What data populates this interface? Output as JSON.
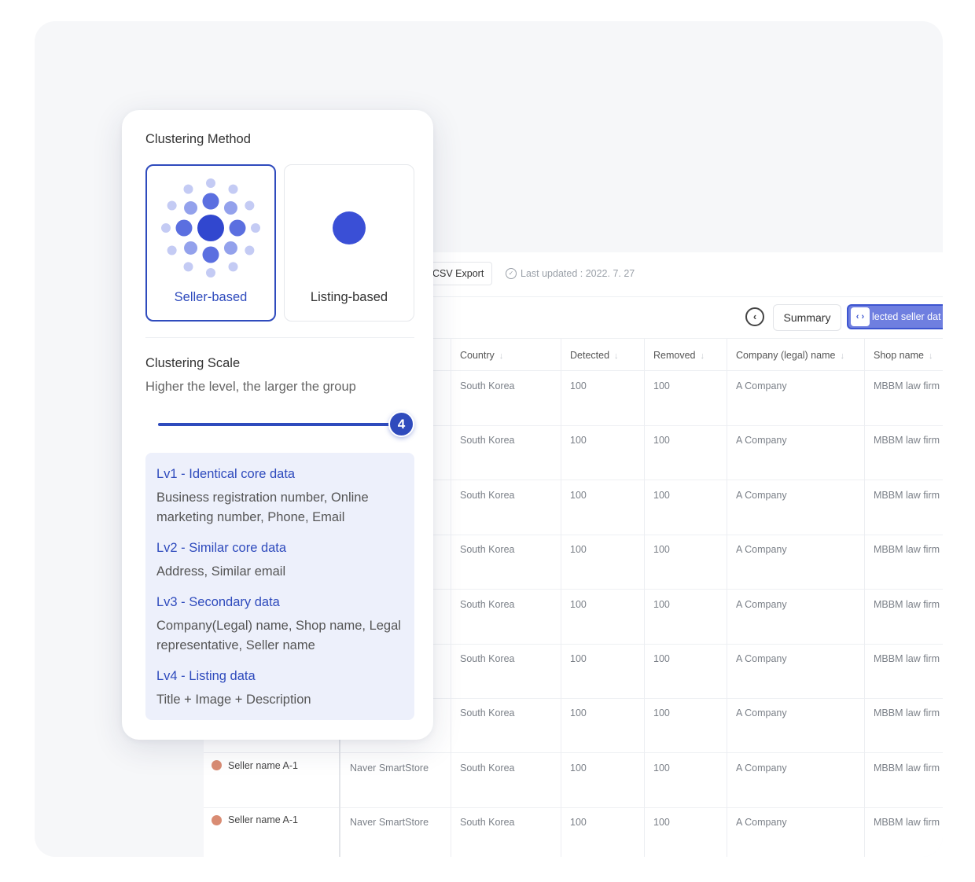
{
  "toolbar": {
    "csv_export": "CSV Export",
    "last_updated": "Last updated : 2022. 7. 27",
    "summary": "Summary",
    "selected_label": "lected seller dat"
  },
  "table": {
    "columns": [
      "Country",
      "Detected",
      "Removed",
      "Company (legal) name",
      "Shop name"
    ],
    "rows": [
      {
        "seller": "",
        "platform": "",
        "country": "South Korea",
        "detected": "100",
        "removed": "100",
        "company": "A Company",
        "shop": "MBBM law firm"
      },
      {
        "seller": "",
        "platform": "",
        "country": "South Korea",
        "detected": "100",
        "removed": "100",
        "company": "A Company",
        "shop": "MBBM law firm"
      },
      {
        "seller": "",
        "platform": "",
        "country": "South Korea",
        "detected": "100",
        "removed": "100",
        "company": "A Company",
        "shop": "MBBM law firm"
      },
      {
        "seller": "",
        "platform": "",
        "country": "South Korea",
        "detected": "100",
        "removed": "100",
        "company": "A Company",
        "shop": "MBBM law firm"
      },
      {
        "seller": "",
        "platform": "",
        "country": "South Korea",
        "detected": "100",
        "removed": "100",
        "company": "A Company",
        "shop": "MBBM law firm"
      },
      {
        "seller": "",
        "platform": "",
        "country": "South Korea",
        "detected": "100",
        "removed": "100",
        "company": "A Company",
        "shop": "MBBM law firm"
      },
      {
        "seller": "",
        "platform": "",
        "country": "South Korea",
        "detected": "100",
        "removed": "100",
        "company": "A Company",
        "shop": "MBBM law firm"
      },
      {
        "seller": "Seller name A-1",
        "platform": "Naver SmartStore",
        "country": "South Korea",
        "detected": "100",
        "removed": "100",
        "company": "A Company",
        "shop": "MBBM law firm"
      },
      {
        "seller": "Seller name A-1",
        "platform": "Naver SmartStore",
        "country": "South Korea",
        "detected": "100",
        "removed": "100",
        "company": "A Company",
        "shop": "MBBM law firm"
      }
    ]
  },
  "card": {
    "method_title": "Clustering Method",
    "methods": [
      {
        "label": "Seller-based",
        "selected": true
      },
      {
        "label": "Listing-based",
        "selected": false
      }
    ],
    "scale_title": "Clustering Scale",
    "scale_subtitle": "Higher the level, the larger the group",
    "slider_value": "4",
    "slider_level_fraction": 1.0,
    "levels": [
      {
        "title": "Lv1 - Identical core data",
        "desc": "Business registration number, Online marketing number, Phone, Email"
      },
      {
        "title": "Lv2 - Similar core data",
        "desc": "Address, Similar email"
      },
      {
        "title": "Lv3 - Secondary data",
        "desc": "Company(Legal) name, Shop name, Legal representative,  Seller name"
      },
      {
        "title": "Lv4 - Listing data",
        "desc": "Title + Image + Description"
      }
    ]
  },
  "colors": {
    "accent": "#2f4bbd",
    "accent_light": "#edf0fb",
    "seller_dot": "#d98c73"
  }
}
